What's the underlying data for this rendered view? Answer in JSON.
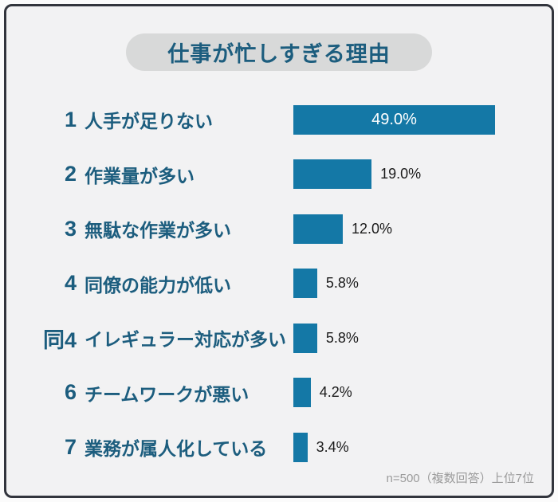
{
  "title": "仕事が忙しすぎる理由",
  "footer_note": "n=500（複数回答）上位7位",
  "colors": {
    "bar": "#1478a6",
    "accent_text": "#1c5d7e",
    "frame_border": "#32353d",
    "background": "#f2f2f3",
    "title_pill": "#d8d9d9",
    "muted_text": "#9b9b9b"
  },
  "chart_data": {
    "type": "bar",
    "orientation": "horizontal",
    "title": "仕事が忙しすぎる理由",
    "ranks": [
      "1",
      "2",
      "3",
      "4",
      "同4",
      "6",
      "7"
    ],
    "categories": [
      "人手が足りない",
      "作業量が多い",
      "無駄な作業が多い",
      "同僚の能力が低い",
      "イレギュラー対応が多い",
      "チームワークが悪い",
      "業務が属人化している"
    ],
    "values": [
      49.0,
      19.0,
      12.0,
      5.8,
      5.8,
      4.2,
      3.4
    ],
    "value_labels": [
      "49.0%",
      "19.0%",
      "12.0%",
      "5.8%",
      "5.8%",
      "4.2%",
      "3.4%"
    ],
    "xlim": [
      0,
      60
    ],
    "grid": false,
    "legend": false,
    "note": "n=500（複数回答）上位7位"
  }
}
